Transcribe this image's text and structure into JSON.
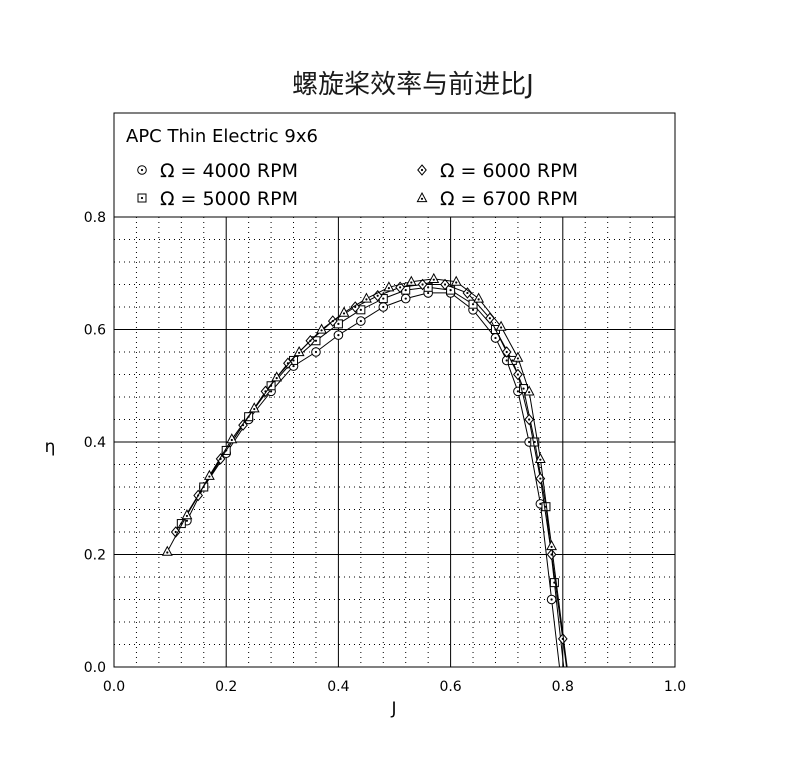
{
  "chart_data": {
    "type": "line",
    "title": "螺旋桨效率与前进比J",
    "xlabel": "J",
    "ylabel": "η",
    "xlim": [
      0,
      1.0
    ],
    "ylim": [
      0,
      0.8
    ],
    "x_ticks": [
      "0.0",
      "0.2",
      "0.4",
      "0.6",
      "0.8",
      "1.0"
    ],
    "y_ticks": [
      "0.0",
      "0.2",
      "0.4",
      "0.6",
      "0.8"
    ],
    "grid": true,
    "legend_title": "APC Thin Electric 9x6",
    "legend_position": "top",
    "series": [
      {
        "name": "Ω = 4000 RPM",
        "marker": "circle-dot",
        "x": [
          0.13,
          0.16,
          0.2,
          0.24,
          0.28,
          0.32,
          0.36,
          0.4,
          0.44,
          0.48,
          0.52,
          0.56,
          0.6,
          0.64,
          0.68,
          0.7,
          0.72,
          0.74,
          0.76,
          0.78
        ],
        "y": [
          0.26,
          0.32,
          0.38,
          0.44,
          0.49,
          0.535,
          0.56,
          0.59,
          0.615,
          0.64,
          0.655,
          0.665,
          0.665,
          0.635,
          0.585,
          0.545,
          0.49,
          0.4,
          0.29,
          0.12
        ]
      },
      {
        "name": "Ω = 5000 RPM",
        "marker": "square-dot",
        "x": [
          0.12,
          0.16,
          0.2,
          0.24,
          0.28,
          0.32,
          0.36,
          0.4,
          0.44,
          0.48,
          0.52,
          0.56,
          0.6,
          0.64,
          0.68,
          0.71,
          0.73,
          0.75,
          0.77,
          0.785
        ],
        "y": [
          0.255,
          0.32,
          0.385,
          0.445,
          0.5,
          0.545,
          0.58,
          0.61,
          0.635,
          0.655,
          0.67,
          0.675,
          0.67,
          0.645,
          0.6,
          0.545,
          0.495,
          0.4,
          0.285,
          0.15
        ]
      },
      {
        "name": "Ω = 6000 RPM",
        "marker": "diamond-dot",
        "x": [
          0.11,
          0.15,
          0.19,
          0.23,
          0.27,
          0.31,
          0.35,
          0.39,
          0.43,
          0.47,
          0.51,
          0.55,
          0.59,
          0.63,
          0.67,
          0.7,
          0.72,
          0.74,
          0.76,
          0.78,
          0.8
        ],
        "y": [
          0.24,
          0.305,
          0.37,
          0.43,
          0.49,
          0.54,
          0.58,
          0.615,
          0.64,
          0.66,
          0.675,
          0.68,
          0.68,
          0.665,
          0.62,
          0.56,
          0.52,
          0.44,
          0.335,
          0.2,
          0.05
        ]
      },
      {
        "name": "Ω = 6700 RPM",
        "marker": "triangle-dot",
        "x": [
          0.095,
          0.13,
          0.17,
          0.21,
          0.25,
          0.29,
          0.33,
          0.37,
          0.41,
          0.45,
          0.49,
          0.53,
          0.57,
          0.61,
          0.65,
          0.69,
          0.72,
          0.74,
          0.76,
          0.78
        ],
        "y": [
          0.205,
          0.27,
          0.34,
          0.405,
          0.46,
          0.515,
          0.56,
          0.6,
          0.63,
          0.655,
          0.675,
          0.685,
          0.69,
          0.685,
          0.655,
          0.605,
          0.55,
          0.49,
          0.37,
          0.215
        ]
      }
    ]
  }
}
